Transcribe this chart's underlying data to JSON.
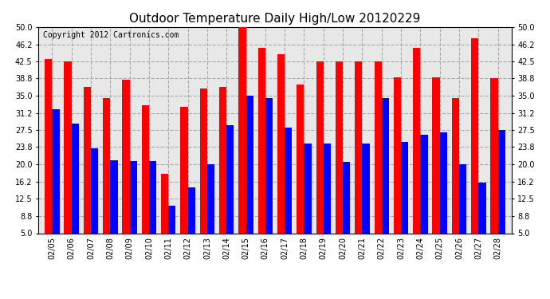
{
  "title": "Outdoor Temperature Daily High/Low 20120229",
  "copyright": "Copyright 2012 Cartronics.com",
  "dates": [
    "02/05",
    "02/06",
    "02/07",
    "02/08",
    "02/09",
    "02/10",
    "02/11",
    "02/12",
    "02/13",
    "02/14",
    "02/15",
    "02/16",
    "02/17",
    "02/18",
    "02/19",
    "02/20",
    "02/21",
    "02/22",
    "02/23",
    "02/24",
    "02/25",
    "02/26",
    "02/27",
    "02/28"
  ],
  "highs": [
    43.0,
    42.5,
    37.0,
    34.5,
    38.5,
    33.0,
    18.0,
    32.5,
    36.5,
    37.0,
    50.0,
    45.5,
    44.0,
    37.5,
    42.5,
    42.5,
    42.5,
    42.5,
    39.0,
    45.5,
    39.0,
    34.5,
    47.5,
    38.8
  ],
  "lows": [
    32.0,
    29.0,
    23.5,
    21.0,
    20.8,
    20.8,
    11.0,
    15.0,
    20.0,
    28.5,
    35.0,
    34.5,
    28.0,
    24.5,
    24.5,
    20.5,
    24.5,
    34.5,
    25.0,
    26.5,
    27.0,
    20.0,
    16.0,
    27.5
  ],
  "bar_color_high": "#ff0000",
  "bar_color_low": "#0000ff",
  "bg_color": "#ffffff",
  "plot_bg_color": "#e8e8e8",
  "grid_color": "#aaaaaa",
  "ylim": [
    5.0,
    50.0
  ],
  "yticks": [
    5.0,
    8.8,
    12.5,
    16.2,
    20.0,
    23.8,
    27.5,
    31.2,
    35.0,
    38.8,
    42.5,
    46.2,
    50.0
  ],
  "title_fontsize": 11,
  "copyright_fontsize": 7,
  "tick_fontsize": 7,
  "bar_width": 0.38
}
